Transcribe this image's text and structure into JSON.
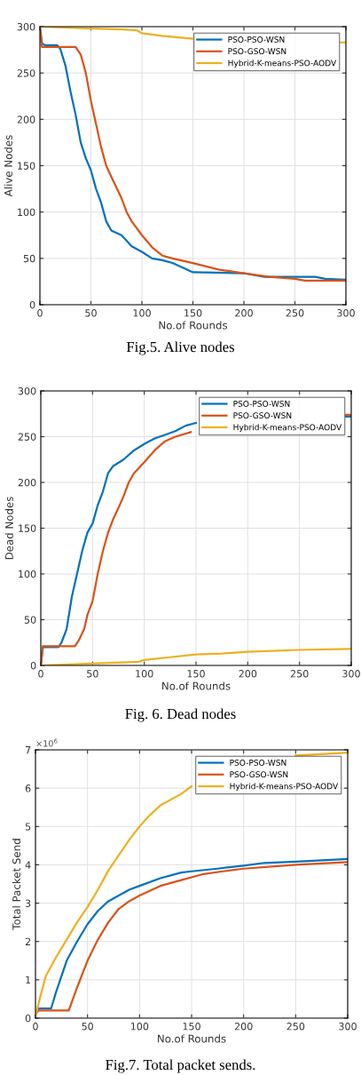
{
  "chart_data": [
    {
      "type": "line",
      "title": "Fig.5. Alive nodes",
      "xlabel": "No.of Rounds",
      "ylabel": "Alive Nodes",
      "xlim": [
        0,
        300
      ],
      "ylim": [
        0,
        300
      ],
      "xticks": [
        0,
        50,
        100,
        150,
        200,
        250,
        300
      ],
      "yticks": [
        0,
        50,
        100,
        150,
        200,
        250,
        300
      ],
      "grid": true,
      "legend": "top right",
      "series": [
        {
          "name": "PSO-PSO-WSN",
          "color": "#0072bd",
          "x": [
            0,
            2,
            5,
            17,
            20,
            25,
            30,
            35,
            40,
            45,
            50,
            55,
            60,
            65,
            70,
            80,
            90,
            100,
            110,
            120,
            130,
            140,
            150,
            200,
            220,
            270,
            280,
            300
          ],
          "values": [
            300,
            282,
            280,
            280,
            276,
            258,
            230,
            205,
            175,
            158,
            145,
            125,
            110,
            90,
            80,
            75,
            63,
            57,
            50,
            48,
            45,
            40,
            35,
            34,
            30,
            30,
            28,
            27
          ]
        },
        {
          "name": "PSO-GSO-WSN",
          "color": "#d95319",
          "x": [
            0,
            2,
            35,
            40,
            45,
            50,
            55,
            60,
            65,
            70,
            80,
            85,
            90,
            100,
            110,
            120,
            130,
            150,
            175,
            200,
            225,
            250,
            260,
            300
          ],
          "values": [
            300,
            278,
            278,
            270,
            250,
            220,
            195,
            170,
            150,
            138,
            115,
            100,
            90,
            75,
            62,
            53,
            50,
            45,
            38,
            34,
            30,
            28,
            26,
            26
          ]
        },
        {
          "name": "Hybrid-K-means-PSO-AODV",
          "color": "#edb120",
          "x": [
            0,
            50,
            80,
            95,
            100,
            120,
            150,
            200,
            250,
            295,
            300
          ],
          "values": [
            300,
            298,
            297,
            296,
            293,
            290,
            287,
            null,
            null,
            283,
            283
          ]
        }
      ]
    },
    {
      "type": "line",
      "title": "Fig. 6. Dead nodes",
      "xlabel": "No.of Rounds",
      "ylabel": "Dead Nodes",
      "xlim": [
        0,
        300
      ],
      "ylim": [
        0,
        300
      ],
      "xticks": [
        0,
        50,
        100,
        150,
        200,
        250,
        300
      ],
      "yticks": [
        0,
        50,
        100,
        150,
        200,
        250,
        300
      ],
      "grid": true,
      "legend": "top right",
      "series": [
        {
          "name": "PSO-PSO-WSN",
          "color": "#0072bd",
          "x": [
            0,
            2,
            17,
            20,
            25,
            30,
            35,
            40,
            45,
            50,
            55,
            60,
            65,
            70,
            80,
            90,
            100,
            110,
            120,
            130,
            140,
            150,
            200,
            250,
            295,
            300
          ],
          "values": [
            0,
            20,
            20,
            25,
            40,
            75,
            100,
            125,
            145,
            155,
            175,
            190,
            210,
            218,
            225,
            235,
            242,
            248,
            252,
            256,
            262,
            265,
            null,
            null,
            272,
            272
          ]
        },
        {
          "name": "PSO-GSO-WSN",
          "color": "#d95319",
          "x": [
            0,
            2,
            33,
            37,
            42,
            45,
            50,
            55,
            60,
            65,
            70,
            75,
            80,
            85,
            90,
            100,
            110,
            120,
            130,
            145,
            200,
            250,
            295,
            300
          ],
          "values": [
            0,
            21,
            21,
            28,
            40,
            55,
            70,
            100,
            125,
            145,
            160,
            172,
            185,
            200,
            210,
            222,
            235,
            245,
            250,
            255,
            null,
            null,
            274,
            274
          ]
        },
        {
          "name": "Hybrid-K-means-PSO-AODV",
          "color": "#edb120",
          "x": [
            0,
            50,
            95,
            100,
            125,
            150,
            175,
            200,
            250,
            300
          ],
          "values": [
            0,
            2,
            4,
            6,
            9,
            12,
            13,
            15,
            17,
            18
          ]
        }
      ]
    },
    {
      "type": "line",
      "title": "Fig.7. Total packet sends.",
      "xlabel": "No.of Rounds",
      "ylabel": "Total Packet Send",
      "annotations": [
        "×10$^{6}$"
      ],
      "xlim": [
        0,
        300
      ],
      "ylim": [
        0,
        7
      ],
      "xticks": [
        0,
        50,
        100,
        150,
        200,
        250,
        300
      ],
      "yticks": [
        0,
        1,
        2,
        3,
        4,
        5,
        6,
        7
      ],
      "grid": true,
      "legend": "top right",
      "series": [
        {
          "name": "PSO-PSO-WSN",
          "color": "#0072bd",
          "x": [
            0,
            3,
            15,
            20,
            30,
            40,
            50,
            60,
            70,
            80,
            90,
            100,
            120,
            140,
            150,
            175,
            200,
            220,
            250,
            300
          ],
          "values": [
            0.1,
            0.25,
            0.25,
            0.7,
            1.5,
            2.0,
            2.45,
            2.8,
            3.05,
            3.2,
            3.35,
            3.45,
            3.65,
            3.8,
            3.83,
            3.9,
            3.98,
            4.05,
            4.08,
            4.15
          ]
        },
        {
          "name": "PSO-GSO-WSN",
          "color": "#d95319",
          "x": [
            0,
            3,
            32,
            40,
            50,
            60,
            70,
            80,
            90,
            100,
            120,
            140,
            160,
            180,
            200,
            250,
            300
          ],
          "values": [
            0.1,
            0.2,
            0.2,
            0.8,
            1.5,
            2.05,
            2.5,
            2.85,
            3.05,
            3.2,
            3.45,
            3.6,
            3.75,
            3.83,
            3.9,
            4.0,
            4.07
          ]
        },
        {
          "name": "Hybrid-K-means-PSO-AODV",
          "color": "#edb120",
          "x": [
            0,
            5,
            10,
            20,
            30,
            40,
            50,
            60,
            70,
            80,
            90,
            100,
            110,
            120,
            140,
            150,
            170,
            200,
            250,
            300
          ],
          "values": [
            0.05,
            0.6,
            1.1,
            1.6,
            2.05,
            2.5,
            2.9,
            3.35,
            3.85,
            4.25,
            4.65,
            5.0,
            5.3,
            5.55,
            5.85,
            6.05,
            null,
            null,
            6.85,
            6.93
          ]
        }
      ]
    }
  ]
}
